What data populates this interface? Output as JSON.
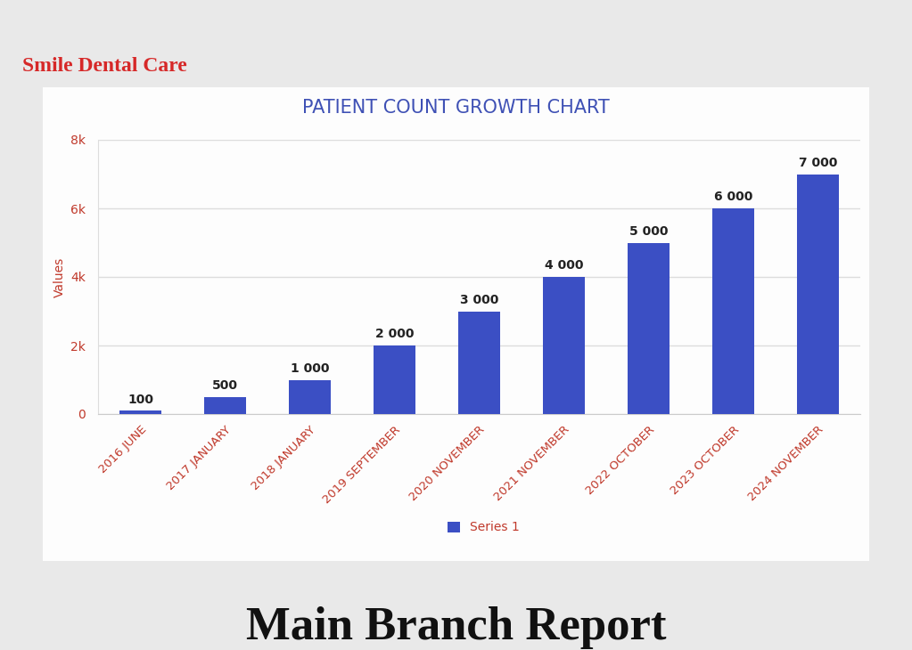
{
  "chart_data": {
    "type": "bar",
    "title": "PATIENT COUNT GROWTH CHART",
    "y_label": "Values",
    "categories": [
      "2016 JUNE",
      "2017 JANUARY",
      "2018 JANUARY",
      "2019 SEPTEMBER",
      "2020 NOVEMBER",
      "2021 NOVEMBER",
      "2022 OCTOBER",
      "2023 OCTOBER",
      "2024 NOVEMBER"
    ],
    "series": [
      {
        "name": "Series 1",
        "color": "#3b4fc4",
        "values": [
          100,
          500,
          1000,
          2000,
          3000,
          4000,
          5000,
          6000,
          7000
        ],
        "value_labels": [
          "100",
          "500",
          "1 000",
          "2 000",
          "3 000",
          "4 000",
          "5 000",
          "6 000",
          "7 000"
        ]
      }
    ],
    "ylim": [
      0,
      8000
    ],
    "yticks": [
      0,
      {
        "value": 2000,
        "label": "2k"
      },
      {
        "value": 4000,
        "label": "4k"
      },
      {
        "value": 6000,
        "label": "6k"
      },
      {
        "value": 8000,
        "label": "8k"
      }
    ],
    "grid": true,
    "data_labels": true,
    "legend": "bottom"
  },
  "header": "Smile Dental Care",
  "footer": "Main Branch Report"
}
